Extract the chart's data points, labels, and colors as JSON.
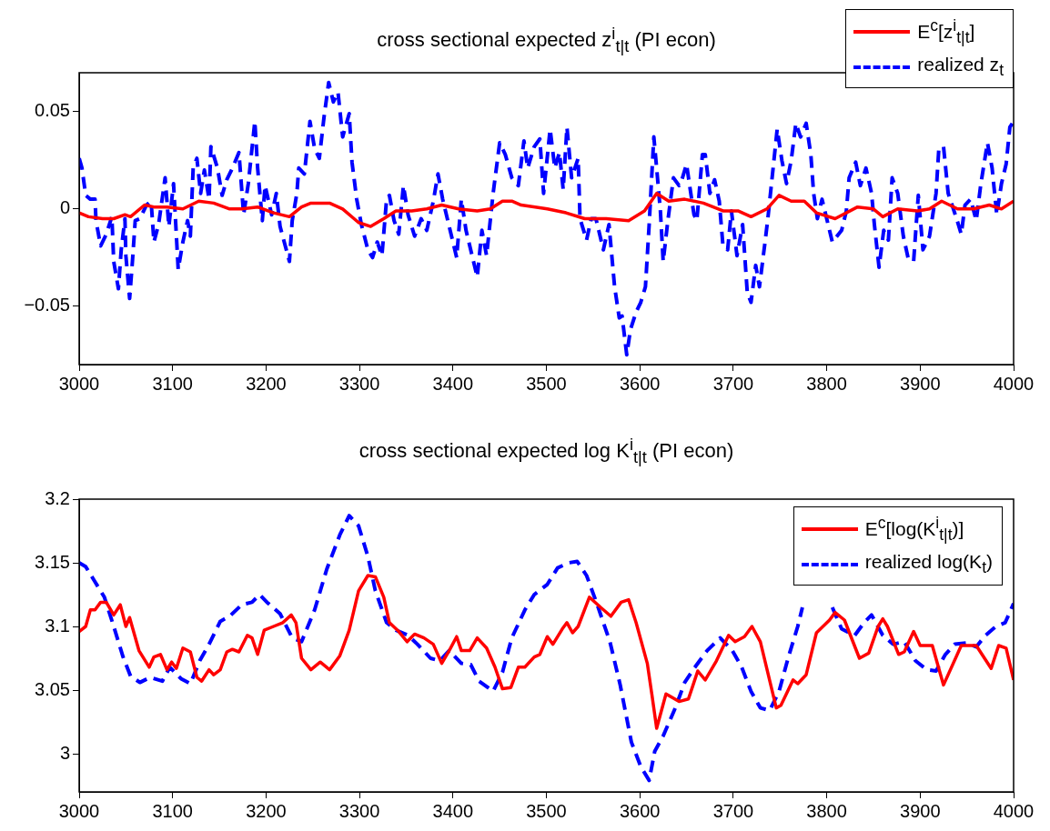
{
  "chart_data": [
    {
      "type": "line",
      "title": "cross sectional expected z$^{i}$$_{t|t}$ (PI econ)",
      "xlim": [
        3000,
        4000
      ],
      "xticks": [
        3000,
        3100,
        3200,
        3300,
        3400,
        3500,
        3600,
        3700,
        3800,
        3900,
        4000
      ],
      "ylim": [
        -0.08,
        0.07
      ],
      "yticks": [
        {
          "value": -0.05,
          "label": "−0.05"
        },
        0,
        0.05
      ],
      "legend": "top right",
      "series": [
        {
          "name": "E$^{c}$[z$^{i}$$_{t|t}$]",
          "color": "#ff0000",
          "line_style": "solid",
          "x": [
            3000,
            3010,
            3025,
            3037,
            3049,
            3055,
            3070,
            3080,
            3094,
            3111,
            3128,
            3144,
            3161,
            3174,
            3191,
            3208,
            3225,
            3238,
            3248,
            3268,
            3282,
            3299,
            3312,
            3326,
            3339,
            3356,
            3372,
            3388,
            3406,
            3426,
            3440,
            3453,
            3463,
            3473,
            3488,
            3501,
            3521,
            3541,
            3564,
            3588,
            3605,
            3618,
            3631,
            3648,
            3668,
            3689,
            3705,
            3719,
            3736,
            3749,
            3762,
            3776,
            3789,
            3809,
            3833,
            3850,
            3860,
            3876,
            3897,
            3910,
            3923,
            3940,
            3957,
            3974,
            3987,
            4000
          ],
          "values": [
            -0.002,
            -0.004,
            -0.005,
            -0.005,
            -0.003,
            -0.004,
            0.002,
            0.001,
            0.001,
            0,
            0.004,
            0.003,
            0,
            0,
            0.001,
            -0.002,
            -0.004,
            0.001,
            0.003,
            0.003,
            0,
            -0.007,
            -0.009,
            -0.005,
            -0.001,
            -0.001,
            0,
            0.002,
            0,
            -0.001,
            0,
            0.004,
            0.004,
            0.002,
            0.001,
            0,
            -0.002,
            -0.005,
            -0.005,
            -0.006,
            -0.001,
            0.008,
            0.004,
            0.005,
            0.003,
            -0.001,
            -0.001,
            -0.004,
            0,
            0.007,
            0.004,
            0.004,
            -0.002,
            -0.005,
            0.001,
            0,
            -0.004,
            0,
            -0.001,
            0,
            0.004,
            0,
            0,
            0.002,
            0,
            0.004
          ]
        },
        {
          "name": "realized z$_{t}$",
          "color": "#0000ff",
          "line_style": "dashed",
          "x": [
            3000,
            3003,
            3007,
            3012,
            3017,
            3018,
            3023,
            3029,
            3035,
            3037,
            3042,
            3045,
            3049,
            3050,
            3054,
            3057,
            3060,
            3065,
            3072,
            3077,
            3080,
            3085,
            3092,
            3096,
            3101,
            3106,
            3111,
            3116,
            3119,
            3122,
            3126,
            3130,
            3134,
            3139,
            3141,
            3148,
            3153,
            3158,
            3164,
            3171,
            3176,
            3181,
            3188,
            3191,
            3196,
            3199,
            3206,
            3211,
            3215,
            3225,
            3228,
            3233,
            3235,
            3241,
            3247,
            3252,
            3257,
            3262,
            3267,
            3272,
            3277,
            3282,
            3289,
            3292,
            3297,
            3302,
            3309,
            3314,
            3319,
            3324,
            3329,
            3332,
            3337,
            3342,
            3347,
            3352,
            3359,
            3366,
            3372,
            3379,
            3384,
            3389,
            3396,
            3404,
            3409,
            3414,
            3419,
            3426,
            3431,
            3436,
            3443,
            3450,
            3456,
            3463,
            3470,
            3476,
            3480,
            3487,
            3493,
            3497,
            3504,
            3509,
            3514,
            3518,
            3522,
            3527,
            3534,
            3536,
            3543,
            3548,
            3553,
            3561,
            3567,
            3573,
            3578,
            3581,
            3586,
            3590,
            3596,
            3601,
            3606,
            3610,
            3615,
            3618,
            3622,
            3625,
            3630,
            3636,
            3642,
            3645,
            3650,
            3653,
            3658,
            3661,
            3667,
            3670,
            3675,
            3680,
            3685,
            3689,
            3694,
            3698,
            3704,
            3710,
            3715,
            3719,
            3724,
            3728,
            3734,
            3737,
            3742,
            3747,
            3752,
            3757,
            3762,
            3767,
            3772,
            3778,
            3783,
            3786,
            3790,
            3795,
            3800,
            3806,
            3811,
            3816,
            3821,
            3824,
            3831,
            3836,
            3842,
            3848,
            3851,
            3856,
            3861,
            3866,
            3870,
            3876,
            3882,
            3887,
            3893,
            3898,
            3903,
            3910,
            3917,
            3920,
            3925,
            3930,
            3939,
            3944,
            3948,
            3954,
            3960,
            3965,
            3972,
            3977,
            3982,
            3987,
            3992,
            3996,
            4000
          ],
          "values": [
            0.026,
            0.021,
            0.007,
            0.005,
            0.005,
            -0.006,
            -0.019,
            -0.013,
            -0.004,
            -0.027,
            -0.041,
            -0.021,
            -0.005,
            -0.024,
            -0.046,
            -0.027,
            -0.006,
            -0.005,
            0.002,
            0.004,
            -0.017,
            -0.008,
            0.016,
            -0.009,
            0.013,
            -0.031,
            -0.017,
            -0.006,
            -0.014,
            0.021,
            0.026,
            0.008,
            0.02,
            0.005,
            0.032,
            0.021,
            0.007,
            0.015,
            0.021,
            0.029,
            -0.003,
            0.013,
            0.045,
            0.021,
            -0.006,
            0.012,
            -0.003,
            0.008,
            -0.009,
            -0.027,
            -0.006,
            0.008,
            0.021,
            0.018,
            0.045,
            0.031,
            0.026,
            0.047,
            0.065,
            0.055,
            0.06,
            0.037,
            0.049,
            0.024,
            0.005,
            -0.008,
            -0.021,
            -0.025,
            -0.017,
            -0.024,
            0.005,
            0.007,
            -0.006,
            -0.013,
            0.012,
            -0.003,
            -0.014,
            -0.005,
            -0.011,
            0.004,
            0.018,
            0.005,
            -0.009,
            -0.025,
            0.005,
            -0.011,
            -0.021,
            -0.035,
            -0.011,
            -0.024,
            0.008,
            0.034,
            0.028,
            0.016,
            0.012,
            0.035,
            0.021,
            0.032,
            0.036,
            0.008,
            0.041,
            0.021,
            0.029,
            0.01,
            0.042,
            0.016,
            0.026,
            -0.005,
            -0.016,
            -0.005,
            -0.005,
            -0.021,
            -0.008,
            -0.04,
            -0.056,
            -0.055,
            -0.075,
            -0.062,
            -0.053,
            -0.048,
            -0.04,
            -0.008,
            0.037,
            0.021,
            -0.001,
            -0.027,
            -0.006,
            0.016,
            0.012,
            0.015,
            0.023,
            0.013,
            -0.003,
            -0.006,
            0.028,
            0.028,
            0.008,
            0.015,
            0.004,
            -0.019,
            -0.021,
            -0.001,
            -0.024,
            -0.008,
            -0.043,
            -0.048,
            -0.029,
            -0.04,
            -0.017,
            -0.005,
            0.018,
            0.041,
            0.025,
            0.013,
            0.025,
            0.044,
            0.037,
            0.044,
            0.028,
            0.008,
            -0.005,
            0.005,
            -0.005,
            -0.017,
            -0.014,
            -0.011,
            -0.001,
            0.016,
            0.024,
            0.012,
            0.021,
            0.008,
            -0.008,
            -0.03,
            -0.011,
            -0.016,
            0.016,
            0.008,
            -0.014,
            -0.025,
            -0.027,
            0.007,
            -0.021,
            -0.014,
            0.008,
            0.031,
            0.032,
            0.008,
            -0.005,
            -0.013,
            0.002,
            0.005,
            -0.006,
            0.013,
            0.034,
            0.021,
            -0.003,
            0.013,
            0.023,
            0.042,
            0.045
          ]
        }
      ]
    },
    {
      "type": "line",
      "title": "cross sectional expected log K$^{i}$$_{t|t}$ (PI econ)",
      "xlim": [
        3000,
        4000
      ],
      "xticks": [
        3000,
        3100,
        3200,
        3300,
        3400,
        3500,
        3600,
        3700,
        3800,
        3900,
        4000
      ],
      "ylim": [
        2.97,
        3.2
      ],
      "yticks": [
        3,
        3.05,
        3.1,
        3.15,
        3.2
      ],
      "legend": "top right",
      "series": [
        {
          "name": "E$^{c}$[log(K$^{i}$$_{t|t}$)]",
          "color": "#ff0000",
          "line_style": "solid",
          "x": [
            3000,
            3007,
            3012,
            3017,
            3023,
            3029,
            3037,
            3044,
            3050,
            3054,
            3064,
            3075,
            3080,
            3087,
            3094,
            3099,
            3104,
            3111,
            3119,
            3126,
            3131,
            3139,
            3144,
            3151,
            3158,
            3164,
            3171,
            3180,
            3185,
            3191,
            3198,
            3208,
            3218,
            3227,
            3232,
            3238,
            3248,
            3258,
            3268,
            3279,
            3289,
            3299,
            3309,
            3317,
            3326,
            3332,
            3342,
            3351,
            3359,
            3369,
            3379,
            3388,
            3396,
            3404,
            3409,
            3418,
            3426,
            3436,
            3445,
            3453,
            3462,
            3470,
            3477,
            3487,
            3493,
            3501,
            3507,
            3517,
            3522,
            3528,
            3534,
            3546,
            3558,
            3569,
            3580,
            3588,
            3596,
            3608,
            3613,
            3618,
            3628,
            3642,
            3652,
            3662,
            3670,
            3682,
            3695,
            3702,
            3712,
            3720,
            3729,
            3746,
            3751,
            3764,
            3769,
            3778,
            3789,
            3803,
            3809,
            3819,
            3835,
            3845,
            3855,
            3860,
            3865,
            3877,
            3883,
            3893,
            3900,
            3913,
            3925,
            3944,
            3960,
            3976,
            3984,
            3992,
            4000
          ],
          "values": [
            3.096,
            3.1,
            3.113,
            3.113,
            3.119,
            3.119,
            3.109,
            3.117,
            3.1,
            3.107,
            3.081,
            3.068,
            3.076,
            3.078,
            3.066,
            3.072,
            3.067,
            3.083,
            3.08,
            3.06,
            3.057,
            3.066,
            3.062,
            3.066,
            3.08,
            3.082,
            3.08,
            3.093,
            3.091,
            3.078,
            3.097,
            3.1,
            3.103,
            3.109,
            3.103,
            3.075,
            3.066,
            3.072,
            3.066,
            3.077,
            3.097,
            3.128,
            3.14,
            3.139,
            3.123,
            3.103,
            3.096,
            3.088,
            3.094,
            3.091,
            3.086,
            3.071,
            3.081,
            3.092,
            3.081,
            3.081,
            3.091,
            3.083,
            3.068,
            3.051,
            3.052,
            3.068,
            3.068,
            3.076,
            3.078,
            3.092,
            3.086,
            3.098,
            3.103,
            3.095,
            3.1,
            3.123,
            3.115,
            3.108,
            3.119,
            3.121,
            3.103,
            3.071,
            3.046,
            3.02,
            3.047,
            3.041,
            3.043,
            3.065,
            3.058,
            3.073,
            3.093,
            3.088,
            3.092,
            3.1,
            3.088,
            3.036,
            3.038,
            3.058,
            3.055,
            3.062,
            3.095,
            3.105,
            3.111,
            3.105,
            3.075,
            3.079,
            3.1,
            3.106,
            3.1,
            3.078,
            3.08,
            3.096,
            3.085,
            3.085,
            3.054,
            3.085,
            3.085,
            3.067,
            3.085,
            3.083,
            3.058
          ]
        },
        {
          "name": "realized log(K$_{t}$)",
          "color": "#0000ff",
          "line_style": "dashed",
          "x": [
            3000,
            3007,
            3017,
            3027,
            3037,
            3047,
            3055,
            3065,
            3076,
            3089,
            3097,
            3109,
            3119,
            3129,
            3139,
            3151,
            3161,
            3174,
            3185,
            3193,
            3201,
            3215,
            3228,
            3238,
            3252,
            3265,
            3279,
            3289,
            3299,
            3309,
            3317,
            3329,
            3339,
            3352,
            3362,
            3376,
            3386,
            3396,
            3409,
            3419,
            3428,
            3443,
            3453,
            3463,
            3477,
            3487,
            3501,
            3512,
            3524,
            3533,
            3543,
            3554,
            3568,
            3579,
            3591,
            3601,
            3610,
            3616,
            3625,
            3638,
            3648,
            3658,
            3672,
            3686,
            3699,
            3709,
            3719,
            3729,
            3739,
            3749,
            3759,
            3769,
            3774,
            3790,
            3806,
            3816,
            3830,
            3840,
            3848,
            3860,
            3871,
            3883,
            3895,
            3907,
            3917,
            3927,
            3937,
            3950,
            3960,
            3970,
            3981,
            3991,
            4000
          ],
          "values": [
            3.15,
            3.147,
            3.135,
            3.123,
            3.1,
            3.076,
            3.061,
            3.056,
            3.06,
            3.057,
            3.068,
            3.059,
            3.055,
            3.073,
            3.086,
            3.104,
            3.108,
            3.117,
            3.119,
            3.125,
            3.119,
            3.11,
            3.091,
            3.088,
            3.113,
            3.145,
            3.172,
            3.187,
            3.179,
            3.155,
            3.128,
            3.103,
            3.097,
            3.093,
            3.086,
            3.075,
            3.073,
            3.081,
            3.071,
            3.07,
            3.057,
            3.049,
            3.064,
            3.091,
            3.113,
            3.125,
            3.133,
            3.146,
            3.15,
            3.151,
            3.14,
            3.118,
            3.088,
            3.054,
            3.009,
            2.99,
            2.979,
            3.002,
            3.014,
            3.036,
            3.056,
            3.067,
            3.081,
            3.091,
            3.081,
            3.068,
            3.049,
            3.036,
            3.034,
            3.049,
            3.076,
            3.1,
            3.115,
            null,
            3.115,
            3.098,
            3.093,
            3.103,
            3.109,
            3.093,
            3.086,
            3.088,
            3.073,
            3.066,
            3.065,
            3.078,
            3.086,
            3.087,
            3.084,
            3.093,
            3.1,
            3.103,
            3.118
          ]
        }
      ]
    }
  ]
}
